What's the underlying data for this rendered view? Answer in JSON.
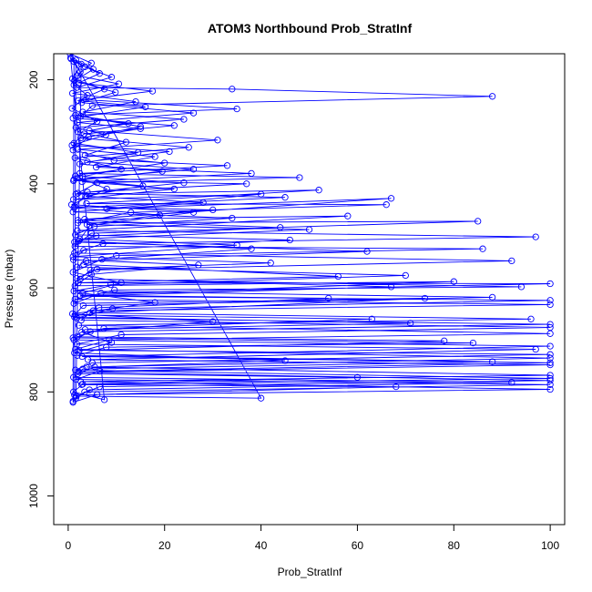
{
  "chart_data": {
    "type": "scatter",
    "title": "ATOM3 Northbound Prob_StratInf",
    "xlabel": "Prob_StratInf",
    "ylabel": "Pressure (mbar)",
    "xlim": [
      -3,
      103
    ],
    "ylim": [
      1055,
      150
    ],
    "y_reversed": true,
    "grid": false,
    "legend": "none",
    "x_ticks": [
      0,
      20,
      40,
      60,
      80,
      100
    ],
    "y_ticks": [
      200,
      400,
      600,
      800,
      1000
    ],
    "series": [
      {
        "color": "#0000ff",
        "marker": "open-circle",
        "connected": true,
        "points": [
          [
            0.6,
            160
          ],
          [
            2.5,
            185
          ],
          [
            1.2,
            210
          ],
          [
            4.0,
            230
          ],
          [
            0.8,
            255
          ],
          [
            6.0,
            280
          ],
          [
            2.0,
            300
          ],
          [
            12.0,
            320
          ],
          [
            3.5,
            345
          ],
          [
            20.0,
            360
          ],
          [
            1.5,
            385
          ],
          [
            8.0,
            410
          ],
          [
            0.7,
            440
          ],
          [
            26.0,
            455
          ],
          [
            4.5,
            480
          ],
          [
            2.2,
            510
          ],
          [
            38.0,
            525
          ],
          [
            7.0,
            545
          ],
          [
            1.0,
            570
          ],
          [
            11.0,
            590
          ],
          [
            3.0,
            610
          ],
          [
            18.0,
            628
          ],
          [
            0.9,
            650
          ],
          [
            30.0,
            665
          ],
          [
            2.8,
            685
          ],
          [
            9.0,
            705
          ],
          [
            1.3,
            725
          ],
          [
            45.0,
            740
          ],
          [
            5.5,
            752
          ],
          [
            2.0,
            765
          ],
          [
            60.0,
            772
          ],
          [
            3.0,
            785
          ],
          [
            1.1,
            800
          ],
          [
            7.5,
            815
          ],
          [
            0.5,
            158
          ],
          [
            3.5,
            175
          ],
          [
            9.0,
            195
          ],
          [
            1.8,
            215
          ],
          [
            34.0,
            218
          ],
          [
            88.0,
            232
          ],
          [
            5.0,
            250
          ],
          [
            2.6,
            270
          ],
          [
            15.0,
            290
          ],
          [
            4.2,
            310
          ],
          [
            1.0,
            335
          ],
          [
            9.5,
            355
          ],
          [
            33.0,
            365
          ],
          [
            2.4,
            380
          ],
          [
            48.0,
            388
          ],
          [
            6.0,
            398
          ],
          [
            1.6,
            420
          ],
          [
            52.0,
            412
          ],
          [
            3.8,
            438
          ],
          [
            66.0,
            440
          ],
          [
            13.0,
            455
          ],
          [
            2.0,
            475
          ],
          [
            85.0,
            472
          ],
          [
            4.8,
            495
          ],
          [
            1.4,
            520
          ],
          [
            86.0,
            525
          ],
          [
            10.0,
            538
          ],
          [
            3.2,
            555
          ],
          [
            56.0,
            578
          ],
          [
            2.1,
            590
          ],
          [
            100.0,
            592
          ],
          [
            6.8,
            610
          ],
          [
            1.2,
            630
          ],
          [
            74.0,
            620
          ],
          [
            4.5,
            648
          ],
          [
            96.0,
            660
          ],
          [
            2.2,
            672
          ],
          [
            100.0,
            688
          ],
          [
            8.5,
            700
          ],
          [
            1.5,
            718
          ],
          [
            100.0,
            735
          ],
          [
            3.8,
            752
          ],
          [
            100.0,
            768
          ],
          [
            2.6,
            780
          ],
          [
            100.0,
            795
          ],
          [
            6.0,
            805
          ],
          [
            1.0,
            820
          ],
          [
            1.2,
            165
          ],
          [
            6.5,
            188
          ],
          [
            2.2,
            206
          ],
          [
            17.5,
            222
          ],
          [
            3.1,
            238
          ],
          [
            35.0,
            256
          ],
          [
            1.5,
            268
          ],
          [
            12.5,
            284
          ],
          [
            4.4,
            298
          ],
          [
            31.0,
            316
          ],
          [
            2.0,
            334
          ],
          [
            18.0,
            348
          ],
          [
            5.8,
            368
          ],
          [
            38.0,
            380
          ],
          [
            2.9,
            396
          ],
          [
            22.0,
            410
          ],
          [
            1.1,
            430
          ],
          [
            40.0,
            420
          ],
          [
            8.0,
            448
          ],
          [
            67.0,
            428
          ],
          [
            3.4,
            468
          ],
          [
            58.0,
            462
          ],
          [
            1.9,
            490
          ],
          [
            97.0,
            502
          ],
          [
            7.2,
            515
          ],
          [
            1.3,
            533
          ],
          [
            92.0,
            548
          ],
          [
            4.6,
            566
          ],
          [
            2.5,
            583
          ],
          [
            94.0,
            598
          ],
          [
            9.6,
            604
          ],
          [
            1.4,
            622
          ],
          [
            100.0,
            632
          ],
          [
            5.2,
            644
          ],
          [
            2.7,
            662
          ],
          [
            100.0,
            676
          ],
          [
            11.0,
            690
          ],
          [
            1.8,
            708
          ],
          [
            97.0,
            718
          ],
          [
            4.1,
            738
          ],
          [
            100.0,
            748
          ],
          [
            2.3,
            762
          ],
          [
            100.0,
            778
          ],
          [
            6.5,
            790
          ],
          [
            1.7,
            808
          ],
          [
            40.0,
            812
          ],
          [
            0.4,
            150
          ],
          [
            4.8,
            168
          ],
          [
            1.9,
            192
          ],
          [
            10.5,
            208
          ],
          [
            0.9,
            226
          ],
          [
            14.0,
            242
          ],
          [
            3.0,
            262
          ],
          [
            24.0,
            276
          ],
          [
            1.6,
            292
          ],
          [
            7.8,
            306
          ],
          [
            0.8,
            326
          ],
          [
            21.0,
            338
          ],
          [
            4.0,
            358
          ],
          [
            26.0,
            372
          ],
          [
            1.2,
            392
          ],
          [
            15.5,
            404
          ],
          [
            3.6,
            424
          ],
          [
            28.0,
            436
          ],
          [
            1.0,
            454
          ],
          [
            34.0,
            466
          ],
          [
            5.4,
            482
          ],
          [
            1.5,
            498
          ],
          [
            46.0,
            508
          ],
          [
            3.2,
            528
          ],
          [
            1.1,
            546
          ],
          [
            27.0,
            556
          ],
          [
            4.8,
            574
          ],
          [
            1.4,
            596
          ],
          [
            80.0,
            588
          ],
          [
            2.5,
            614
          ],
          [
            54.0,
            620
          ],
          [
            6.4,
            638
          ],
          [
            1.3,
            656
          ],
          [
            71.0,
            668
          ],
          [
            3.5,
            680
          ],
          [
            1.0,
            696
          ],
          [
            84.0,
            706
          ],
          [
            7.9,
            714
          ],
          [
            1.9,
            730
          ],
          [
            88.0,
            742
          ],
          [
            3.0,
            756
          ],
          [
            1.1,
            772
          ],
          [
            92.0,
            782
          ],
          [
            4.4,
            796
          ],
          [
            1.6,
            812
          ],
          [
            2.7,
            170
          ],
          [
            0.9,
            198
          ],
          [
            7.5,
            218
          ],
          [
            2.1,
            240
          ],
          [
            16.0,
            252
          ],
          [
            1.0,
            274
          ],
          [
            22.0,
            288
          ],
          [
            3.3,
            304
          ],
          [
            1.2,
            322
          ],
          [
            14.5,
            340
          ],
          [
            2.4,
            362
          ],
          [
            19.5,
            376
          ],
          [
            1.1,
            394
          ],
          [
            37.0,
            400
          ],
          [
            4.0,
            416
          ],
          [
            1.4,
            444
          ],
          [
            30.0,
            450
          ],
          [
            2.0,
            470
          ],
          [
            44.0,
            484
          ],
          [
            5.8,
            500
          ],
          [
            1.3,
            512
          ],
          [
            62.0,
            530
          ],
          [
            3.7,
            548
          ],
          [
            1.8,
            560
          ],
          [
            70.0,
            576
          ],
          [
            8.8,
            594
          ],
          [
            1.2,
            606
          ],
          [
            88.0,
            618
          ],
          [
            3.1,
            634
          ],
          [
            1.4,
            652
          ],
          [
            63.0,
            660
          ],
          [
            7.4,
            678
          ],
          [
            1.9,
            694
          ],
          [
            78.0,
            702
          ],
          [
            2.3,
            720
          ],
          [
            100.0,
            728
          ],
          [
            5.0,
            744
          ],
          [
            1.5,
            758
          ],
          [
            100.0,
            774
          ],
          [
            2.8,
            786
          ],
          [
            68.0,
            790
          ],
          [
            1.3,
            806
          ],
          [
            1.6,
            162
          ],
          [
            5.2,
            180
          ],
          [
            1.3,
            202
          ],
          [
            9.8,
            224
          ],
          [
            2.8,
            244
          ],
          [
            26.0,
            264
          ],
          [
            1.9,
            282
          ],
          [
            15.0,
            294
          ],
          [
            2.6,
            312
          ],
          [
            25.0,
            330
          ],
          [
            1.4,
            350
          ],
          [
            11.0,
            372
          ],
          [
            3.0,
            386
          ],
          [
            24.0,
            398
          ],
          [
            2.0,
            418
          ],
          [
            45.0,
            426
          ],
          [
            1.2,
            446
          ],
          [
            19.0,
            460
          ],
          [
            3.9,
            478
          ],
          [
            50.0,
            488
          ],
          [
            2.4,
            506
          ],
          [
            35.0,
            518
          ],
          [
            1.0,
            540
          ],
          [
            42.0,
            552
          ],
          [
            6.0,
            564
          ],
          [
            1.7,
            582
          ],
          [
            67.0,
            598
          ],
          [
            2.4,
            616
          ],
          [
            100.0,
            624
          ],
          [
            9.2,
            640
          ],
          [
            1.8,
            658
          ],
          [
            100.0,
            670
          ],
          [
            4.6,
            684
          ],
          [
            1.2,
            700
          ],
          [
            100.0,
            712
          ],
          [
            2.9,
            732
          ],
          [
            100.0,
            744
          ],
          [
            6.6,
            760
          ],
          [
            1.6,
            776
          ],
          [
            100.0,
            786
          ],
          [
            3.4,
            800
          ],
          [
            1.0,
            818
          ]
        ]
      }
    ]
  }
}
